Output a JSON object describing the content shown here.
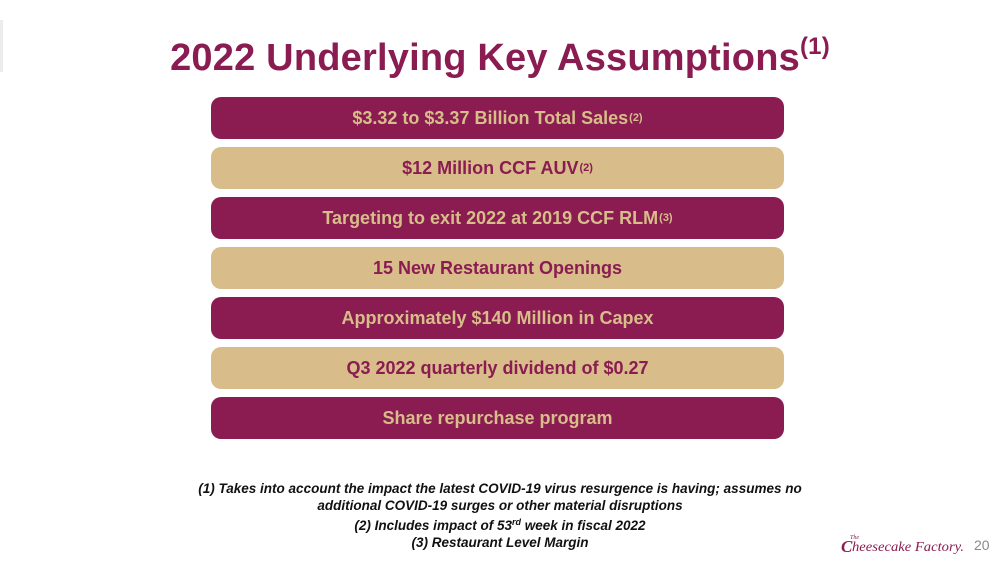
{
  "slide": {
    "title": "2022 Underlying Key Assumptions",
    "title_sup": "(1)",
    "page_number": "20",
    "logo_text": "The Cheesecake Factory"
  },
  "colors": {
    "maroon": "#8a1c52",
    "tan": "#d8bd8a"
  },
  "assumptions": [
    {
      "text": "$3.32 to $3.37 Billion Total Sales",
      "sup": "(2)",
      "style": "maroon"
    },
    {
      "text": "$12 Million CCF AUV",
      "sup": "(2)",
      "style": "tan"
    },
    {
      "text": "Targeting to exit 2022 at 2019 CCF RLM",
      "sup": "(3)",
      "style": "maroon"
    },
    {
      "text": "15 New Restaurant Openings",
      "sup": "",
      "style": "tan"
    },
    {
      "text": "Approximately $140 Million in Capex",
      "sup": "",
      "style": "maroon"
    },
    {
      "text": "Q3 2022 quarterly dividend of $0.27",
      "sup": "",
      "style": "tan"
    },
    {
      "text": "Share repurchase program",
      "sup": "",
      "style": "maroon"
    }
  ],
  "footnotes": {
    "line1": "(1) Takes into account the impact the latest COVID-19 virus resurgence is having; assumes no",
    "line2": "additional COVID-19 surges or other material disruptions",
    "line3_pre": "(2) Includes impact of 53",
    "line3_sup": "rd",
    "line3_post": " week in fiscal 2022",
    "line4": "(3) Restaurant Level Margin"
  }
}
